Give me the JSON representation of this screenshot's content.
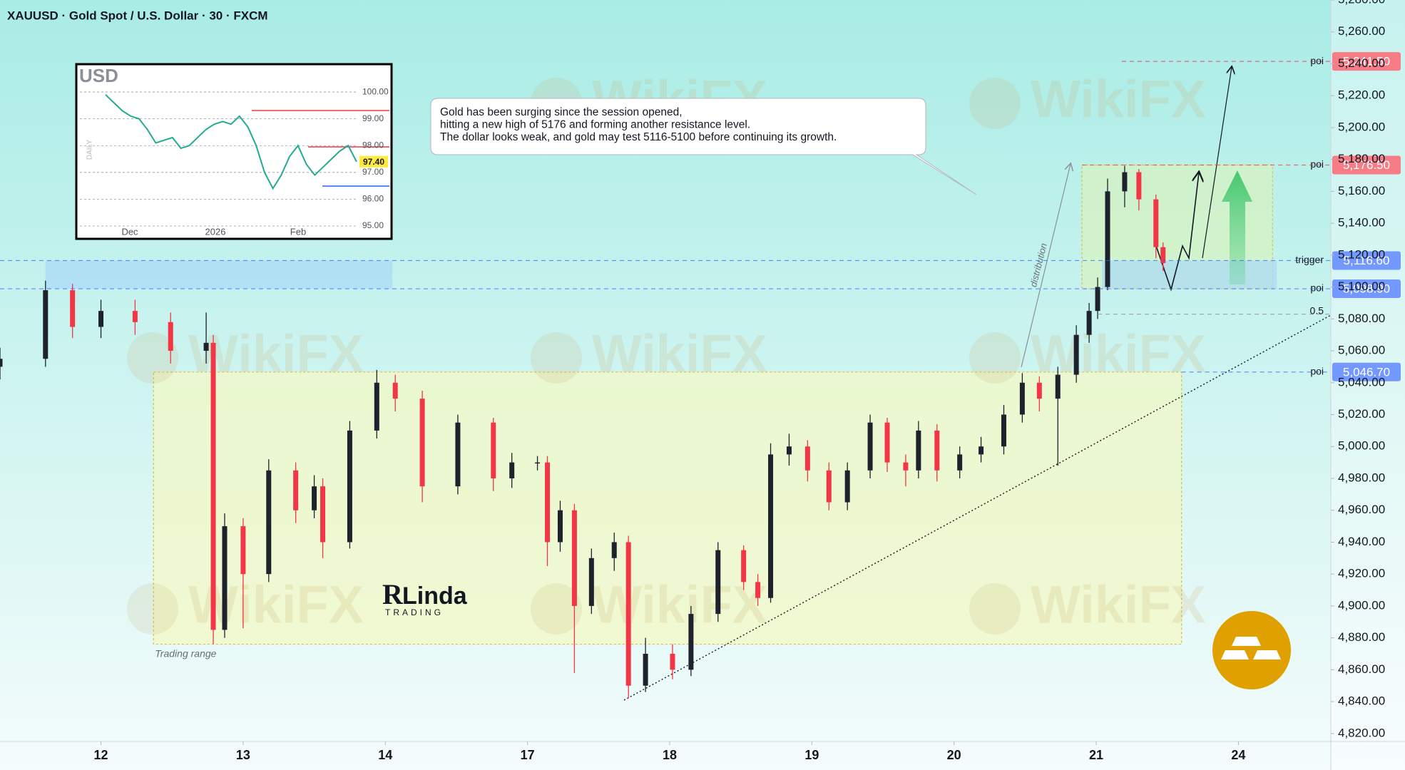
{
  "chart_data": {
    "type": "candlestick",
    "title": "XAUUSD · Gold Spot / U.S. Dollar · 30 · FXCM",
    "up_color": "#1e222d",
    "down_color": "#f23645",
    "xlim": [
      -0.71,
      8.65
    ],
    "xticks": [
      {
        "value": 0,
        "label": "12"
      },
      {
        "value": 1,
        "label": "13"
      },
      {
        "value": 2,
        "label": "14"
      },
      {
        "value": 3,
        "label": "17"
      },
      {
        "value": 4,
        "label": "18"
      },
      {
        "value": 5,
        "label": "19"
      },
      {
        "value": 6,
        "label": "20"
      },
      {
        "value": 7,
        "label": "21"
      },
      {
        "value": 8,
        "label": "24"
      }
    ],
    "ylim": [
      4815,
      5280
    ],
    "yticks": [
      {
        "value": 4820,
        "label": "4,820.00"
      },
      {
        "value": 4840,
        "label": "4,840.00"
      },
      {
        "value": 4860,
        "label": "4,860.00"
      },
      {
        "value": 4880,
        "label": "4,880.00"
      },
      {
        "value": 4900,
        "label": "4,900.00"
      },
      {
        "value": 4920,
        "label": "4,920.00"
      },
      {
        "value": 4940,
        "label": "4,940.00"
      },
      {
        "value": 4960,
        "label": "4,960.00"
      },
      {
        "value": 4980,
        "label": "4,980.00"
      },
      {
        "value": 5000,
        "label": "5,000.00"
      },
      {
        "value": 5020,
        "label": "5,020.00"
      },
      {
        "value": 5040,
        "label": "5,040.00"
      },
      {
        "value": 5060,
        "label": "5,060.00"
      },
      {
        "value": 5080,
        "label": "5,080.00"
      },
      {
        "value": 5100,
        "label": "5,100.00"
      },
      {
        "value": 5120,
        "label": "5,120.00"
      },
      {
        "value": 5140,
        "label": "5,140.00"
      },
      {
        "value": 5160,
        "label": "5,160.00"
      },
      {
        "value": 5180,
        "label": "5,180.00"
      },
      {
        "value": 5200,
        "label": "5,200.00"
      },
      {
        "value": 5220,
        "label": "5,220.00"
      },
      {
        "value": 5240,
        "label": "5,240.00"
      },
      {
        "value": 5260,
        "label": "5,260.00"
      },
      {
        "value": 5280,
        "label": "5,280.00"
      }
    ],
    "x": [
      -0.71,
      -0.39,
      -0.2,
      0,
      0.24,
      0.49,
      0.74,
      0.79,
      0.87,
      1.0,
      1.18,
      1.37,
      1.5,
      1.56,
      1.75,
      1.94,
      2.07,
      2.26,
      2.51,
      2.76,
      2.89,
      3.07,
      3.14,
      3.23,
      3.33,
      3.45,
      3.61,
      3.71,
      3.83,
      4.02,
      4.15,
      4.34,
      4.52,
      4.62,
      4.71,
      4.84,
      4.97,
      5.12,
      5.25,
      5.41,
      5.53,
      5.66,
      5.75,
      5.88,
      6.04,
      6.19,
      6.35,
      6.48,
      6.6,
      6.73,
      6.86,
      6.95,
      7.01,
      7.08,
      7.2,
      7.3,
      7.42,
      7.47
    ],
    "open": [
      5050,
      5055,
      5098,
      5075,
      5085,
      5078,
      5060,
      5065,
      4885,
      4950,
      4920,
      4985,
      4960,
      4975,
      4940,
      5010,
      5040,
      5030,
      4975,
      5015,
      4980,
      4990,
      4990,
      4940,
      4960,
      4900,
      4930,
      4940,
      4850,
      4870,
      4860,
      4895,
      4935,
      4915,
      4905,
      4995,
      5000,
      4985,
      4965,
      4985,
      5015,
      4990,
      4985,
      5010,
      4985,
      4995,
      5000,
      5020,
      5040,
      5030,
      5045,
      5070,
      5085,
      5100,
      5160,
      5172,
      5155,
      5125
    ],
    "high": [
      5062,
      5104,
      5102,
      5092,
      5092,
      5084,
      5084,
      5070,
      4958,
      4955,
      4992,
      4990,
      4982,
      4980,
      5016,
      5048,
      5045,
      5035,
      5020,
      5018,
      4996,
      4994,
      4994,
      4966,
      4964,
      4936,
      4946,
      4944,
      4880,
      4876,
      4900,
      4940,
      4938,
      4920,
      5002,
      5008,
      5004,
      4990,
      4990,
      5020,
      5018,
      4995,
      5016,
      5014,
      5000,
      5006,
      5026,
      5046,
      5044,
      5050,
      5076,
      5090,
      5106,
      5168,
      5176,
      5174,
      5158,
      5128
    ],
    "low": [
      5042,
      5050,
      5068,
      5068,
      5070,
      5052,
      5052,
      4876,
      4880,
      4886,
      4915,
      4952,
      4955,
      4930,
      4936,
      5005,
      5022,
      4965,
      4970,
      4972,
      4974,
      4985,
      4925,
      4934,
      4858,
      4895,
      4922,
      4842,
      4846,
      4854,
      4856,
      4890,
      4910,
      4900,
      4902,
      4988,
      4978,
      4960,
      4960,
      4980,
      4984,
      4975,
      4980,
      4978,
      4980,
      4990,
      4995,
      5015,
      5022,
      4988,
      5040,
      5065,
      5080,
      5098,
      5150,
      5148,
      5118,
      5110
    ],
    "close": [
      5055,
      5098,
      5075,
      5085,
      5078,
      5060,
      5065,
      4885,
      4950,
      4920,
      4985,
      4960,
      4975,
      4940,
      5010,
      5040,
      5030,
      4975,
      5015,
      4980,
      4990,
      4990,
      4940,
      4960,
      4900,
      4930,
      4940,
      4850,
      4870,
      4860,
      4895,
      4935,
      4915,
      4905,
      4995,
      5000,
      4985,
      4965,
      4985,
      5015,
      4990,
      4985,
      5010,
      4985,
      4995,
      5000,
      5020,
      5040,
      5030,
      5045,
      5070,
      5085,
      5100,
      5160,
      5172,
      5155,
      5125,
      5115
    ],
    "levels": [
      {
        "price": 5241.5,
        "tag": "5,241.50",
        "label": "poi",
        "color": "#f23645",
        "from": 7.18
      },
      {
        "price": 5176.5,
        "tag": "5,176.50",
        "label": "poi",
        "color": "#f23645",
        "from": 6.9
      },
      {
        "price": 5116.6,
        "tag": "5,116.60",
        "label": "trigger",
        "color": "#2962ff",
        "from": -0.71
      },
      {
        "price": 5098.9,
        "tag": "5,098.90",
        "label": "poi",
        "color": "#2962ff",
        "from": -0.71
      },
      {
        "price": 5083,
        "label": "0.5",
        "color": "#8a8f98",
        "from": 7.01
      },
      {
        "price": 5046.7,
        "tag": "5,046.70",
        "label": "poi",
        "color": "#2962ff",
        "from": 7.6
      }
    ],
    "zones": [
      {
        "from": 4876,
        "to": 5046.7,
        "x": [
          0.37,
          7.6
        ],
        "color": "#f3f8c6",
        "border": "#e0b84a",
        "label": "Trading range"
      },
      {
        "from": 5098.9,
        "to": 5176.5,
        "x": [
          6.9,
          8.24
        ],
        "color": "#d6f3c2",
        "border": "#e0b84a"
      },
      {
        "from": 5098.9,
        "to": 5116.6,
        "x": [
          -0.39,
          2.05
        ],
        "color": "#a9d8f8"
      },
      {
        "from": 5098.9,
        "to": 5116.6,
        "x": [
          7.04,
          8.27
        ],
        "color": "#a9d8f8"
      }
    ],
    "note_lines": [
      "Gold has been surging since the session opened,",
      "hitting a new high of 5176 and forming another resistance level.",
      "The dollar looks weak, and gold may test 5116-5100 before continuing its growth."
    ],
    "distribution_label": "distribution"
  },
  "inset": {
    "title": "USD",
    "side_label": "DAILY",
    "ylim": [
      94.52,
      101.04
    ],
    "yticks": [
      {
        "value": 100,
        "label": "100.00"
      },
      {
        "value": 99,
        "label": "99.00"
      },
      {
        "value": 98,
        "label": "98.00"
      },
      {
        "value": 97,
        "label": "97.00"
      },
      {
        "value": 96,
        "label": "96.00"
      },
      {
        "value": 95,
        "label": "95.00"
      }
    ],
    "xlabels": [
      "Dec",
      "2026",
      "Feb"
    ],
    "closes": [
      99.9,
      99.6,
      99.3,
      99.1,
      99.0,
      98.6,
      98.1,
      98.2,
      98.3,
      97.9,
      98.0,
      98.3,
      98.6,
      98.8,
      98.9,
      98.8,
      99.1,
      98.7,
      98.0,
      97.0,
      96.4,
      96.9,
      97.6,
      98.0,
      97.3,
      96.9,
      97.2,
      97.5,
      97.8,
      98.0,
      97.4
    ],
    "price_tag": {
      "value": 97.4,
      "label": "97.40"
    }
  },
  "logo": {
    "mark": "R",
    "name": "Linda",
    "sub": "TRADING"
  },
  "watermark": "WikiFX"
}
